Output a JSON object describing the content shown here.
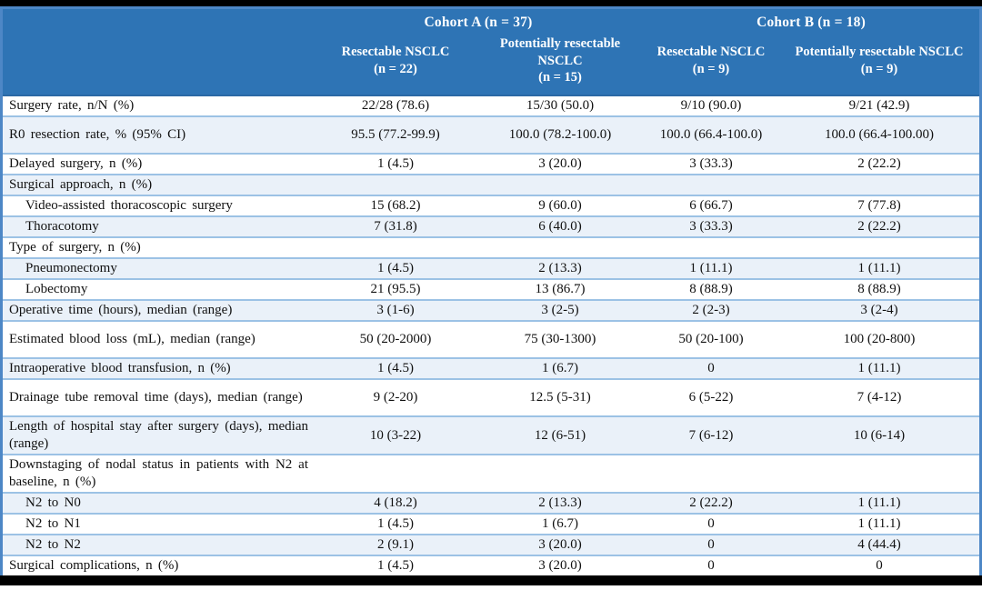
{
  "colors": {
    "header_bg": "#2e74b5",
    "outer_border": "#4d87c6",
    "header_divider": "#2b69a5",
    "row_border": "#9cc2e5",
    "stripe": "#eaf1f9"
  },
  "table": {
    "cohorts": [
      {
        "label": "Cohort A (n = 37)"
      },
      {
        "label": "Cohort B (n = 18)"
      }
    ],
    "columns": [
      {
        "name": "Resectable NSCLC",
        "n": "(n = 22)"
      },
      {
        "name": "Potentially resectable NSCLC",
        "n": "(n = 15)"
      },
      {
        "name": "Resectable NSCLC",
        "n": "(n = 9)"
      },
      {
        "name": "Potentially resectable NSCLC",
        "n": "(n = 9)"
      }
    ],
    "rows": [
      {
        "label": "Surgery rate, n/N (%)",
        "indent": false,
        "section": false,
        "tall": false,
        "values": [
          "22/28 (78.6)",
          "15/30 (50.0)",
          "9/10 (90.0)",
          "9/21 (42.9)"
        ]
      },
      {
        "label": "R0 resection rate, % (95% CI)",
        "indent": false,
        "section": false,
        "tall": true,
        "values": [
          "95.5 (77.2-99.9)",
          "100.0 (78.2-100.0)",
          "100.0 (66.4-100.0)",
          "100.0 (66.4-100.00)"
        ]
      },
      {
        "label": "Delayed surgery, n (%)",
        "indent": false,
        "section": false,
        "tall": false,
        "values": [
          "1 (4.5)",
          "3 (20.0)",
          "3 (33.3)",
          "2 (22.2)"
        ]
      },
      {
        "label": "Surgical approach, n (%)",
        "indent": false,
        "section": true,
        "tall": false,
        "values": [
          "",
          "",
          "",
          ""
        ]
      },
      {
        "label": "Video-assisted thoracoscopic surgery",
        "indent": true,
        "section": false,
        "tall": false,
        "values": [
          "15 (68.2)",
          "9 (60.0)",
          "6 (66.7)",
          "7 (77.8)"
        ]
      },
      {
        "label": "Thoracotomy",
        "indent": true,
        "section": false,
        "tall": false,
        "values": [
          "7 (31.8)",
          "6 (40.0)",
          "3 (33.3)",
          "2 (22.2)"
        ]
      },
      {
        "label": "Type of surgery, n (%)",
        "indent": false,
        "section": true,
        "tall": false,
        "values": [
          "",
          "",
          "",
          ""
        ]
      },
      {
        "label": "Pneumonectomy",
        "indent": true,
        "section": false,
        "tall": false,
        "values": [
          "1 (4.5)",
          "2 (13.3)",
          "1 (11.1)",
          "1 (11.1)"
        ]
      },
      {
        "label": "Lobectomy",
        "indent": true,
        "section": false,
        "tall": false,
        "values": [
          "21 (95.5)",
          "13 (86.7)",
          "8 (88.9)",
          "8 (88.9)"
        ]
      },
      {
        "label": "Operative time (hours), median (range)",
        "indent": false,
        "section": false,
        "tall": false,
        "values": [
          "3 (1-6)",
          "3 (2-5)",
          "2 (2-3)",
          "3 (2-4)"
        ]
      },
      {
        "label": "Estimated blood loss (mL), median (range)",
        "indent": false,
        "section": false,
        "tall": true,
        "values": [
          "50 (20-2000)",
          "75 (30-1300)",
          "50 (20-100)",
          "100 (20-800)"
        ]
      },
      {
        "label": "Intraoperative blood transfusion, n (%)",
        "indent": false,
        "section": false,
        "tall": false,
        "values": [
          "1 (4.5)",
          "1 (6.7)",
          "0",
          "1 (11.1)"
        ]
      },
      {
        "label": "Drainage tube removal time (days), median (range)",
        "indent": false,
        "section": false,
        "tall": true,
        "values": [
          "9 (2-20)",
          "12.5 (5-31)",
          "6 (5-22)",
          "7 (4-12)"
        ]
      },
      {
        "label": "Length of hospital stay after surgery (days), median (range)",
        "indent": false,
        "section": false,
        "tall": true,
        "values": [
          "10 (3-22)",
          "12 (6-51)",
          "7 (6-12)",
          "10 (6-14)"
        ]
      },
      {
        "label": "Downstaging of nodal status in patients with N2 at baseline, n (%)",
        "indent": false,
        "section": true,
        "tall": true,
        "values": [
          "",
          "",
          "",
          ""
        ]
      },
      {
        "label": "N2 to N0",
        "indent": true,
        "section": false,
        "tall": false,
        "values": [
          "4 (18.2)",
          "2 (13.3)",
          "2 (22.2)",
          "1 (11.1)"
        ]
      },
      {
        "label": "N2 to N1",
        "indent": true,
        "section": false,
        "tall": false,
        "values": [
          "1 (4.5)",
          "1 (6.7)",
          "0",
          "1 (11.1)"
        ]
      },
      {
        "label": "N2 to N2",
        "indent": true,
        "section": false,
        "tall": false,
        "values": [
          "2 (9.1)",
          "3 (20.0)",
          "0",
          "4 (44.4)"
        ]
      },
      {
        "label": "Surgical complications, n (%)",
        "indent": false,
        "section": false,
        "tall": false,
        "values": [
          "1 (4.5)",
          "3 (20.0)",
          "0",
          "0"
        ]
      }
    ]
  }
}
